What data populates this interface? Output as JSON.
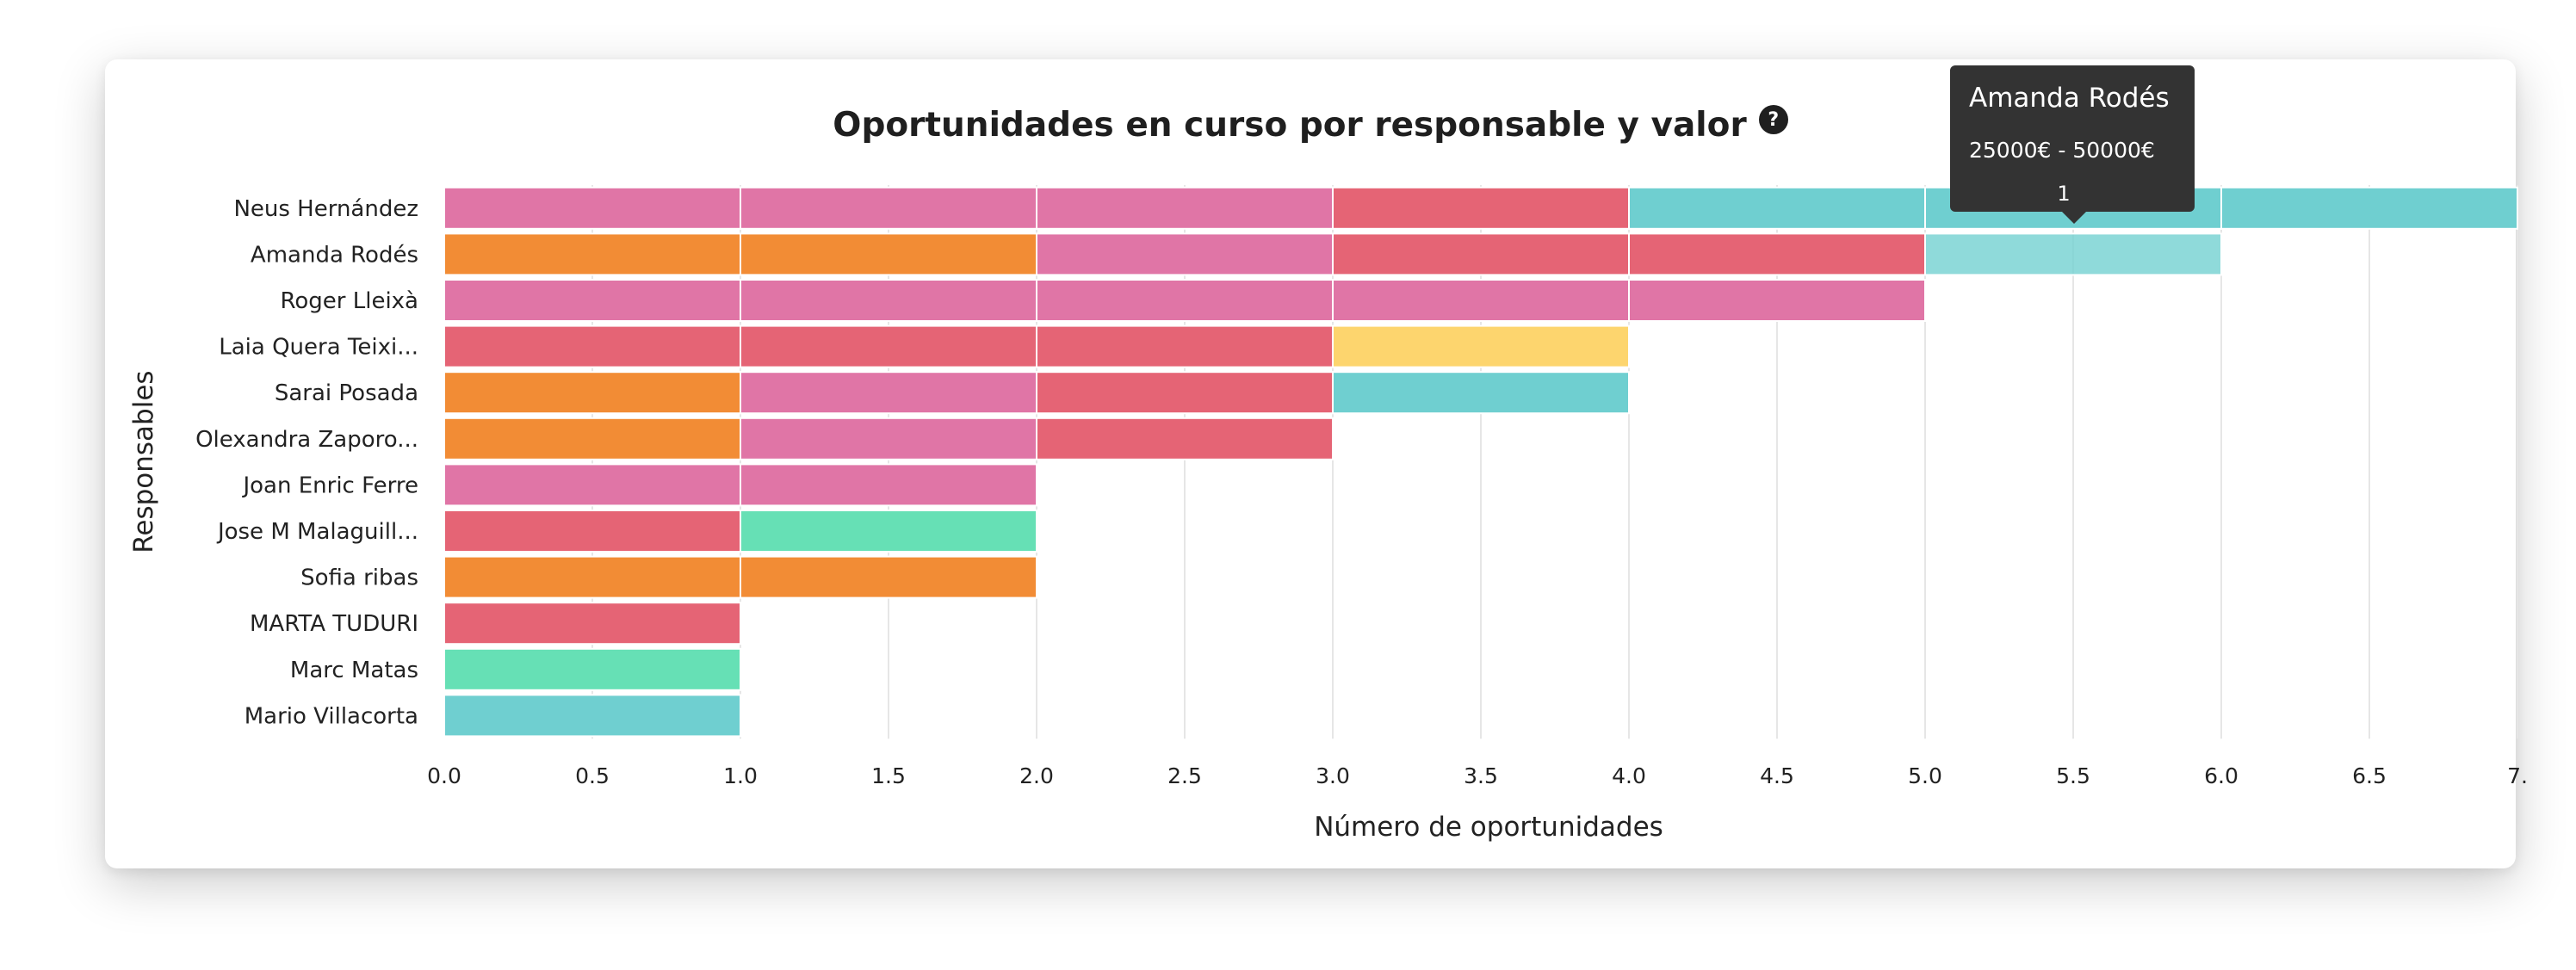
{
  "chart_data": {
    "type": "bar",
    "orientation": "horizontal",
    "stacked": true,
    "title": "Oportunidades en curso por responsable y valor",
    "xlabel": "Número de oportunidades",
    "ylabel": "Responsables",
    "xlim": [
      0,
      7
    ],
    "x_ticks": [
      "0.0",
      "0.5",
      "1.0",
      "1.5",
      "2.0",
      "2.5",
      "3.0",
      "3.5",
      "4.0",
      "4.5",
      "5.0",
      "5.5",
      "6.0",
      "6.5",
      "7."
    ],
    "grid": true,
    "categories": [
      "Neus Hernández",
      "Amanda Rodés",
      "Roger Lleixà",
      "Laia Quera Teixi...",
      "Sarai Posada",
      "Olexandra Zaporo...",
      "Joan Enric Ferre",
      "Jose M Malaguill...",
      "Sofia ribas",
      "MARTA TUDURI",
      "Marc Matas",
      "Mario Villacorta"
    ],
    "series": [
      {
        "color": "#f28c35",
        "values": [
          0,
          2,
          0,
          0,
          1,
          1,
          0,
          0,
          2,
          0,
          0,
          0
        ]
      },
      {
        "color": "#e075a6",
        "values": [
          3,
          1,
          5,
          0,
          1,
          1,
          2,
          0,
          0,
          0,
          0,
          0
        ]
      },
      {
        "color": "#e56475",
        "values": [
          1,
          2,
          0,
          3,
          1,
          1,
          0,
          1,
          0,
          1,
          0,
          0
        ]
      },
      {
        "color": "#fdd56e",
        "values": [
          0,
          0,
          0,
          1,
          0,
          0,
          0,
          0,
          0,
          0,
          0,
          0
        ]
      },
      {
        "value_range": "25000€ - 50000€",
        "color": "#6fcfd0",
        "values": [
          3,
          1,
          0,
          0,
          1,
          0,
          0,
          0,
          0,
          0,
          0,
          1
        ]
      },
      {
        "color": "#66e0b5",
        "values": [
          0,
          0,
          0,
          0,
          0,
          0,
          0,
          1,
          0,
          0,
          1,
          0
        ]
      }
    ],
    "highlight": {
      "category": "Amanda Rodés",
      "series_index": 4
    }
  },
  "tooltip": {
    "title": "Amanda Rodés",
    "value": "25000€ - 50000€",
    "count": "1"
  },
  "help_icon_glyph": "?"
}
